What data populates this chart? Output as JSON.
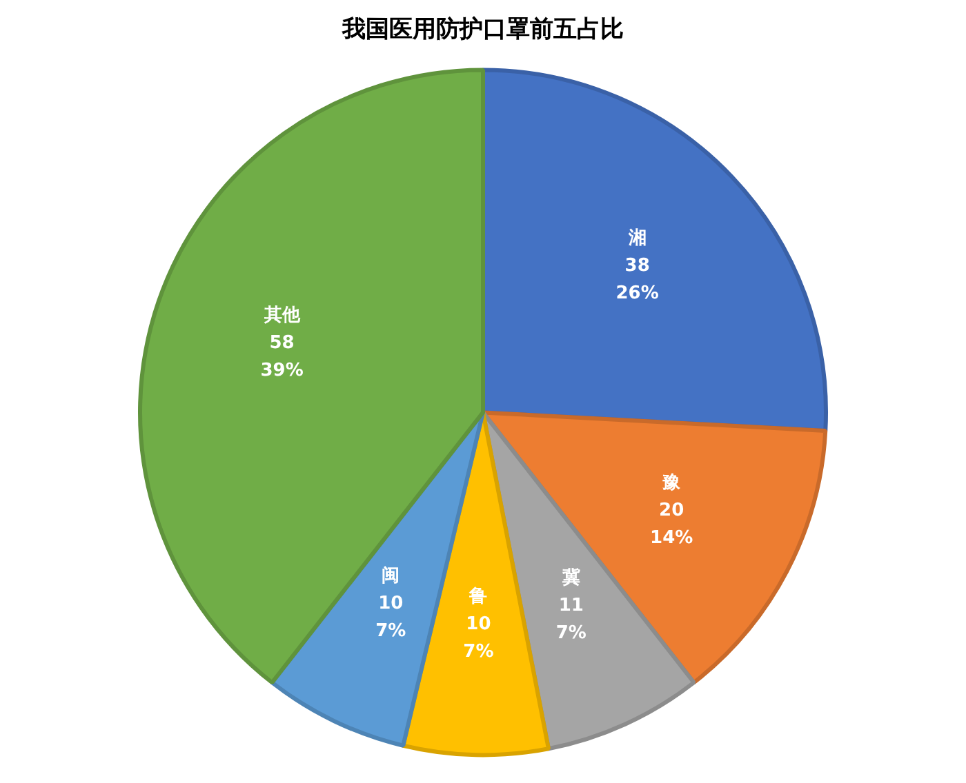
{
  "chart_data": {
    "type": "pie",
    "title": "我国医用防护口罩前五占比",
    "categories": [
      "湘",
      "豫",
      "冀",
      "鲁",
      "闽",
      "其他"
    ],
    "values": [
      38,
      20,
      11,
      10,
      10,
      58
    ],
    "colors": [
      "#4472c4",
      "#ed7d31",
      "#a5a5a5",
      "#ffc000",
      "#5b9bd5",
      "#70ad47"
    ],
    "value_labels": [
      "38\n26%",
      "20\n14%",
      "11\n7%",
      "10\n7%",
      "10\n7%",
      "58\n39%"
    ],
    "legend": false
  }
}
